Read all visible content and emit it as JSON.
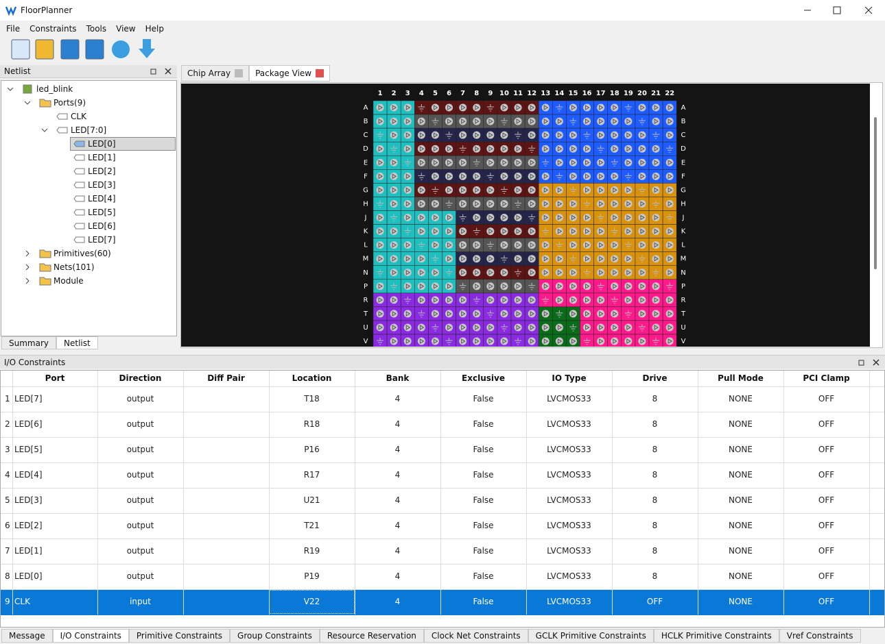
{
  "window": {
    "title": "FloorPlanner"
  },
  "menu": [
    "File",
    "Constraints",
    "Tools",
    "View",
    "Help"
  ],
  "netlist": {
    "title": "Netlist",
    "tree": {
      "label": "led_blink",
      "children": [
        {
          "label": "Ports(9)",
          "children": [
            {
              "label": "CLK"
            },
            {
              "label": "LED[7:0]",
              "children": [
                {
                  "label": "LED[0]",
                  "selected": true
                },
                {
                  "label": "LED[1]"
                },
                {
                  "label": "LED[2]"
                },
                {
                  "label": "LED[3]"
                },
                {
                  "label": "LED[4]"
                },
                {
                  "label": "LED[5]"
                },
                {
                  "label": "LED[6]"
                },
                {
                  "label": "LED[7]"
                }
              ]
            }
          ]
        },
        {
          "label": "Primitives(60)"
        },
        {
          "label": "Nets(101)"
        },
        {
          "label": "Module"
        }
      ]
    },
    "tabs": [
      "Summary",
      "Netlist"
    ],
    "active_tab": 1
  },
  "editor_tabs": [
    "Chip Array",
    "Package View"
  ],
  "active_editor_tab": 1,
  "package": {
    "columns": [
      1,
      2,
      3,
      4,
      5,
      6,
      7,
      8,
      9,
      10,
      11,
      12,
      13,
      14,
      15,
      16,
      17,
      18,
      19,
      20,
      21,
      22
    ],
    "rows": [
      "A",
      "B",
      "C",
      "D",
      "E",
      "F",
      "G",
      "H",
      "J",
      "K",
      "L",
      "M",
      "N",
      "P",
      "R",
      "T",
      "U",
      "V"
    ]
  },
  "io": {
    "title": "I/O Constraints",
    "headers": [
      "Port",
      "Direction",
      "Diff Pair",
      "Location",
      "Bank",
      "Exclusive",
      "IO Type",
      "Drive",
      "Pull Mode",
      "PCI Clamp"
    ],
    "rows": [
      [
        1,
        "LED[7]",
        "output",
        null,
        "T18",
        4,
        "False",
        "LVCMOS33",
        8,
        "NONE",
        "OFF"
      ],
      [
        2,
        "LED[6]",
        "output",
        null,
        "R18",
        4,
        "False",
        "LVCMOS33",
        8,
        "NONE",
        "OFF"
      ],
      [
        3,
        "LED[5]",
        "output",
        null,
        "P16",
        4,
        "False",
        "LVCMOS33",
        8,
        "NONE",
        "OFF"
      ],
      [
        4,
        "LED[4]",
        "output",
        null,
        "R17",
        4,
        "False",
        "LVCMOS33",
        8,
        "NONE",
        "OFF"
      ],
      [
        5,
        "LED[3]",
        "output",
        null,
        "U21",
        4,
        "False",
        "LVCMOS33",
        8,
        "NONE",
        "OFF"
      ],
      [
        6,
        "LED[2]",
        "output",
        null,
        "T21",
        4,
        "False",
        "LVCMOS33",
        8,
        "NONE",
        "OFF"
      ],
      [
        7,
        "LED[1]",
        "output",
        null,
        "R19",
        4,
        "False",
        "LVCMOS33",
        8,
        "NONE",
        "OFF"
      ],
      [
        8,
        "LED[0]",
        "output",
        null,
        "P19",
        4,
        "False",
        "LVCMOS33",
        8,
        "NONE",
        "OFF"
      ],
      [
        9,
        "CLK",
        "input",
        null,
        "V22",
        4,
        "False",
        "LVCMOS33",
        "OFF",
        "NONE",
        "OFF"
      ]
    ],
    "selected_row": 8
  },
  "bottom_tabs": [
    "Message",
    "I/O Constraints",
    "Primitive Constraints",
    "Group Constraints",
    "Resource Reservation",
    "Clock Net Constraints",
    "GCLK Primitive Constraints",
    "HCLK Primitive Constraints",
    "Vref Constraints"
  ],
  "active_bottom_tab": 1
}
